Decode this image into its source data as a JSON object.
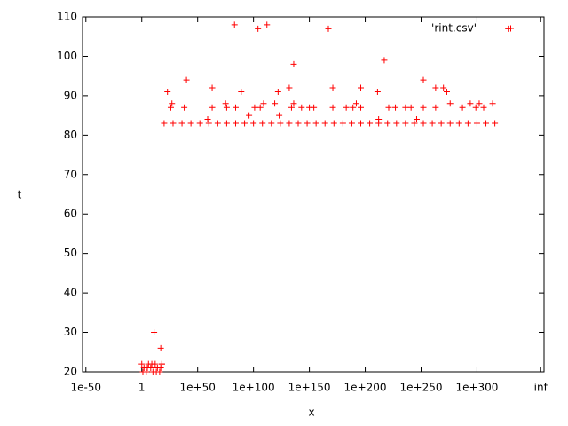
{
  "chart_data": {
    "type": "scatter",
    "x_label": "x",
    "y_label": "t",
    "xlim": [
      -53,
      360
    ],
    "ylim": [
      20,
      110
    ],
    "legend": "top-right",
    "xticks": [
      {
        "value": -50,
        "label": "1e-50"
      },
      {
        "value": 0,
        "label": "1"
      },
      {
        "value": 50,
        "label": "1e+50"
      },
      {
        "value": 100,
        "label": "1e+100"
      },
      {
        "value": 150,
        "label": "1e+150"
      },
      {
        "value": 200,
        "label": "1e+200"
      },
      {
        "value": 250,
        "label": "1e+250"
      },
      {
        "value": 300,
        "label": "1e+300"
      },
      {
        "value": 357,
        "label": "inf"
      }
    ],
    "yticks": [
      20,
      30,
      40,
      50,
      60,
      70,
      80,
      90,
      100,
      110
    ],
    "series": [
      {
        "name": "'rint.csv'",
        "color": "#ff0000",
        "x": [
          0,
          2,
          4,
          6,
          8,
          10,
          12,
          14,
          16,
          18,
          1,
          5,
          9,
          13,
          17,
          20,
          28,
          36,
          44,
          52,
          60,
          68,
          76,
          84,
          92,
          100,
          108,
          116,
          124,
          132,
          140,
          148,
          156,
          164,
          172,
          180,
          188,
          196,
          204,
          212,
          220,
          228,
          236,
          244,
          252,
          260,
          268,
          276,
          284,
          292,
          300,
          308,
          316,
          11,
          17,
          18,
          23,
          26,
          27,
          38,
          40,
          59,
          63,
          63,
          75,
          76,
          83,
          84,
          89,
          96,
          101,
          104,
          106,
          109,
          112,
          119,
          122,
          123,
          132,
          134,
          136,
          136,
          143,
          150,
          154,
          167,
          171,
          171,
          183,
          189,
          192,
          196,
          196,
          211,
          212,
          217,
          221,
          227,
          236,
          241,
          246,
          252,
          252,
          263,
          263,
          270,
          273,
          276,
          287,
          294,
          299,
          302,
          306,
          314,
          328
        ],
        "values": [
          22,
          21,
          20,
          22,
          21,
          20,
          22,
          21,
          20,
          22,
          20,
          21,
          22,
          20,
          21,
          83,
          83,
          83,
          83,
          83,
          83,
          83,
          83,
          83,
          83,
          83,
          83,
          83,
          83,
          83,
          83,
          83,
          83,
          83,
          83,
          83,
          83,
          83,
          83,
          83,
          83,
          83,
          83,
          83,
          83,
          83,
          83,
          83,
          83,
          83,
          83,
          83,
          83,
          30,
          26,
          22,
          91,
          87,
          88,
          87,
          94,
          84,
          87,
          92,
          88,
          87,
          108,
          87,
          91,
          85,
          87,
          107,
          87,
          88,
          108,
          88,
          91,
          85,
          92,
          87,
          98,
          88,
          87,
          87,
          87,
          107,
          92,
          87,
          87,
          87,
          88,
          92,
          87,
          91,
          84,
          99,
          87,
          87,
          87,
          87,
          84,
          94,
          87,
          92,
          87,
          92,
          91,
          88,
          87,
          88,
          87,
          88,
          87,
          88,
          107
        ]
      }
    ]
  }
}
